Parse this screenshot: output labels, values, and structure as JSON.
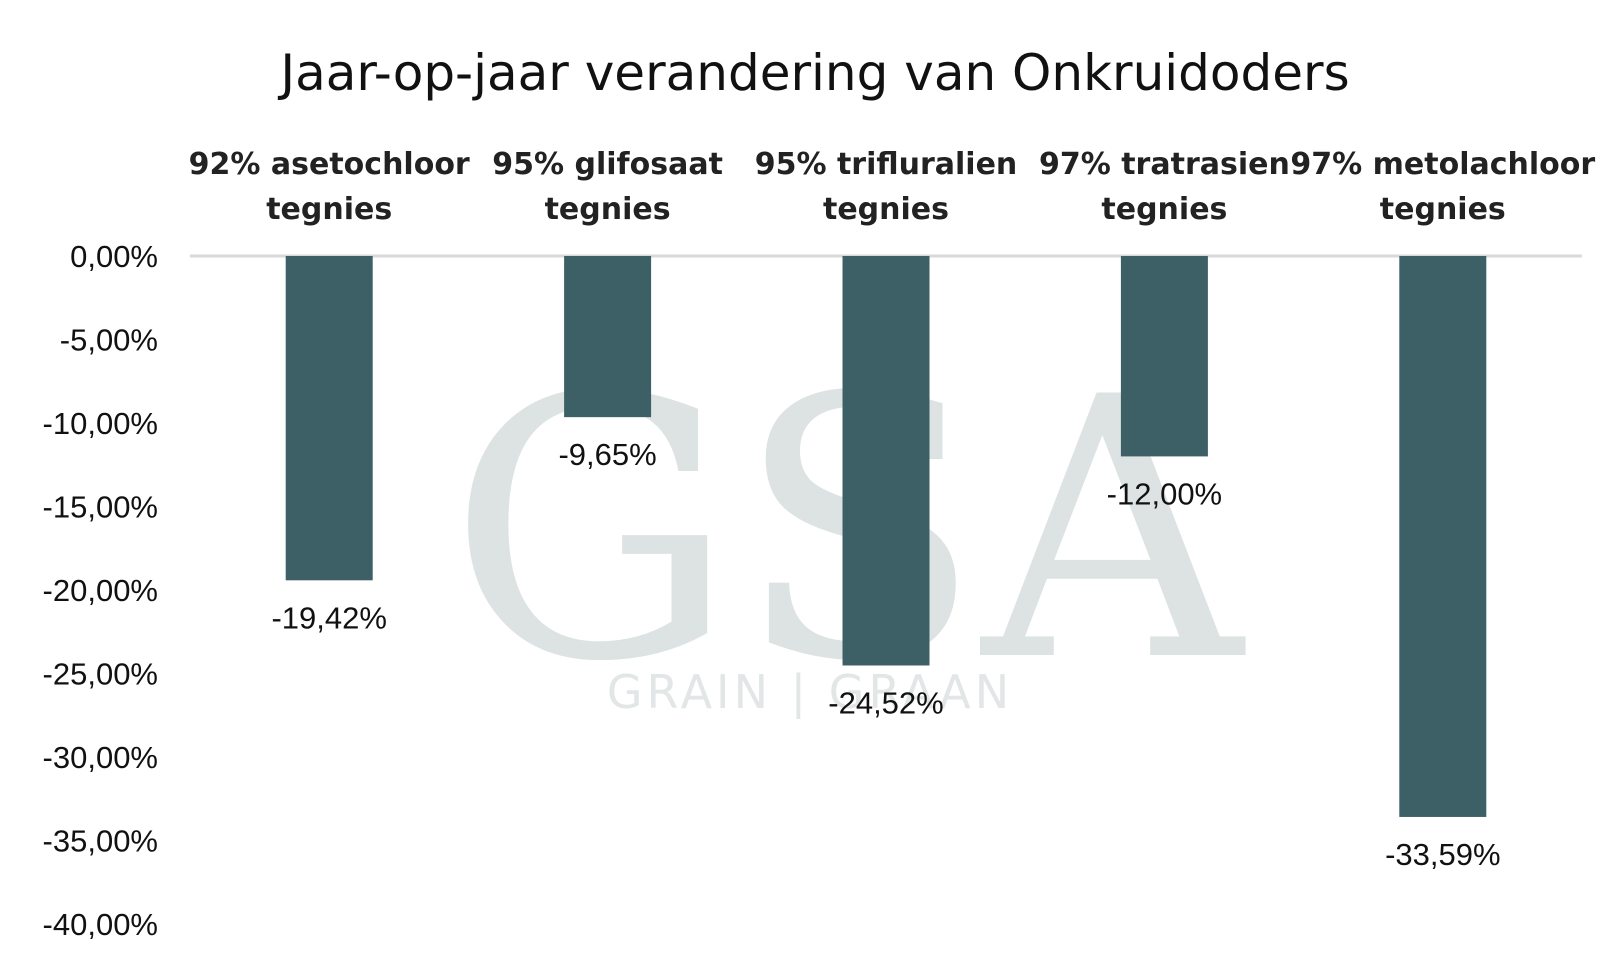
{
  "chart_data": {
    "type": "bar",
    "title": "Jaar-op-jaar verandering van Onkruidoders",
    "categories": [
      [
        "92% asetochloor",
        "tegnies"
      ],
      [
        "95% glifosaat",
        "tegnies"
      ],
      [
        "95% trifluralien",
        "tegnies"
      ],
      [
        "97% tratrasien",
        "tegnies"
      ],
      [
        "97% metolachloor",
        "tegnies"
      ]
    ],
    "values": [
      -19.42,
      -9.65,
      -24.52,
      -12.0,
      -33.59
    ],
    "data_labels": [
      "-19,42%",
      "-9,65%",
      "-24,52%",
      "-12,00%",
      "-33,59%"
    ],
    "ylim": [
      -40,
      0
    ],
    "yticks": [
      0,
      -5,
      -10,
      -15,
      -20,
      -25,
      -30,
      -35,
      -40
    ],
    "ytick_labels": [
      "0,00%",
      "-5,00%",
      "-10,00%",
      "-15,00%",
      "-20,00%",
      "-25,00%",
      "-30,00%",
      "-35,00%",
      "-40,00%"
    ],
    "category_axis_position": "top",
    "grid": false,
    "legend": "none",
    "bar_color": "#3d6066"
  },
  "watermark": {
    "letters": "GSA",
    "text": "GRAIN | GRAAN"
  }
}
